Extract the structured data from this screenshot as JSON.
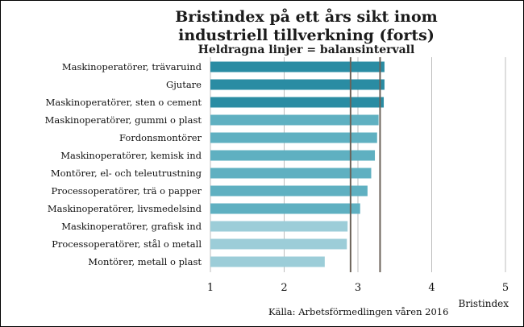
{
  "chart_data": {
    "type": "bar",
    "orientation": "horizontal",
    "title": "Bristindex på ett års sikt inom",
    "subtitle": "industriell tillverkning (forts)",
    "note": "Heldragna linjer = balansintervall",
    "xlabel": "Bristindex",
    "source": "Källa: Arbetsförmedlingen våren 2016",
    "xlim": [
      1,
      5
    ],
    "xticks": [
      "1",
      "2",
      "3",
      "4",
      "5"
    ],
    "grid": "vertical",
    "categories": [
      "Maskinoperatörer, trävaruind",
      "Gjutare",
      "Maskinoperatörer, sten o  cement",
      "Maskinoperatörer, gummi o plast",
      "Fordonsmontörer",
      "Maskinoperatörer, kemisk ind",
      "Montörer, el- och teleutrustning",
      "Processoperatörer, trä o papper",
      "Maskinoperatörer, livsmedelsind",
      "Maskinoperatörer, grafisk ind",
      "Processoperatörer, stål o metall",
      "Montörer, metall o plast"
    ],
    "values": [
      3.36,
      3.36,
      3.35,
      3.28,
      3.26,
      3.23,
      3.18,
      3.13,
      3.03,
      2.86,
      2.85,
      2.55
    ],
    "balance_interval": [
      2.9,
      3.3
    ],
    "colors": {
      "dark": "#2a8ca3",
      "mid": "#5fb0c1",
      "light": "#9ccdd8",
      "refline": "#6b6259",
      "grid": "#bdbdbd"
    },
    "bar_color_groups": [
      "dark",
      "dark",
      "dark",
      "mid",
      "mid",
      "mid",
      "mid",
      "mid",
      "mid",
      "light",
      "light",
      "light"
    ]
  }
}
